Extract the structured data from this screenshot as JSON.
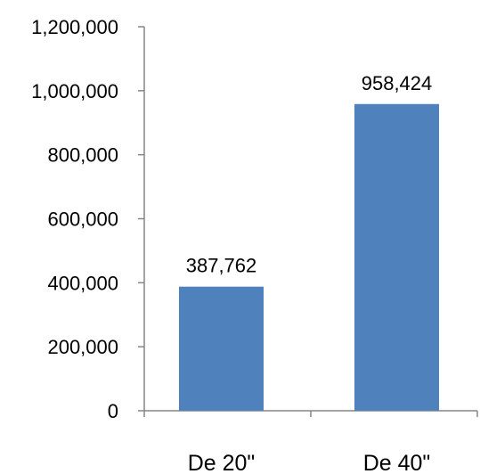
{
  "chart_data": {
    "type": "bar",
    "title": "",
    "xlabel": "",
    "ylabel": "",
    "categories": [
      "De 20\"",
      "De 40\""
    ],
    "values": [
      387762,
      958424
    ],
    "data_labels": [
      "387,762",
      "958,424"
    ],
    "ylim": [
      0,
      1200000
    ],
    "yticks": [
      0,
      200000,
      400000,
      600000,
      800000,
      1000000,
      1200000
    ],
    "ytick_labels": [
      "0",
      "200,000",
      "400,000",
      "600,000",
      "800,000",
      "1,000,000",
      "1,200,000"
    ],
    "grid": false,
    "legend": "none",
    "bar_color": "#4F81BD",
    "axis_color": "#868686"
  }
}
